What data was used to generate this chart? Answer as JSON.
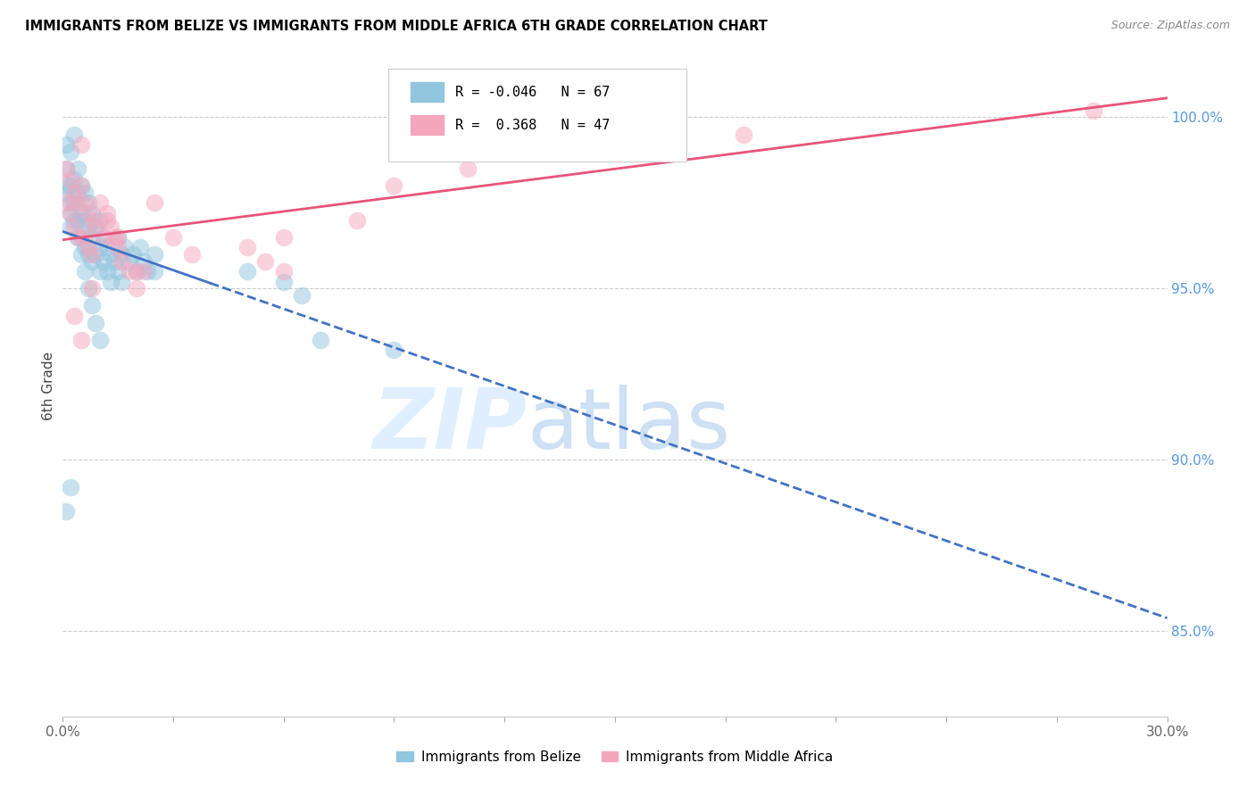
{
  "title": "IMMIGRANTS FROM BELIZE VS IMMIGRANTS FROM MIDDLE AFRICA 6TH GRADE CORRELATION CHART",
  "source": "Source: ZipAtlas.com",
  "ylabel": "6th Grade",
  "y_ticks": [
    85.0,
    90.0,
    95.0,
    100.0
  ],
  "x_min": 0.0,
  "x_max": 0.3,
  "y_min": 82.5,
  "y_max": 101.8,
  "legend_blue_label": "Immigrants from Belize",
  "legend_pink_label": "Immigrants from Middle Africa",
  "R_blue": -0.046,
  "N_blue": 67,
  "R_pink": 0.368,
  "N_pink": 47,
  "blue_color": "#92c5de",
  "pink_color": "#f4a6bd",
  "blue_line_color": "#4472c4",
  "pink_line_color": "#e8547a",
  "blue_points_x": [
    0.001,
    0.001,
    0.001,
    0.002,
    0.002,
    0.002,
    0.002,
    0.003,
    0.003,
    0.003,
    0.004,
    0.004,
    0.004,
    0.005,
    0.005,
    0.005,
    0.006,
    0.006,
    0.006,
    0.007,
    0.007,
    0.007,
    0.008,
    0.008,
    0.008,
    0.009,
    0.009,
    0.01,
    0.01,
    0.01,
    0.011,
    0.011,
    0.012,
    0.012,
    0.013,
    0.013,
    0.014,
    0.015,
    0.015,
    0.016,
    0.016,
    0.017,
    0.018,
    0.019,
    0.02,
    0.021,
    0.022,
    0.023,
    0.025,
    0.025,
    0.001,
    0.002,
    0.003,
    0.004,
    0.005,
    0.006,
    0.007,
    0.008,
    0.009,
    0.01,
    0.001,
    0.002,
    0.05,
    0.06,
    0.065,
    0.07,
    0.09
  ],
  "blue_points_y": [
    99.2,
    98.5,
    97.8,
    99.0,
    98.0,
    97.2,
    96.8,
    99.5,
    98.2,
    97.5,
    98.5,
    97.8,
    97.0,
    98.0,
    97.2,
    96.5,
    97.8,
    97.0,
    96.2,
    97.5,
    96.8,
    96.0,
    97.2,
    96.5,
    95.8,
    96.8,
    96.0,
    97.0,
    96.2,
    95.5,
    96.5,
    95.8,
    96.2,
    95.5,
    96.0,
    95.2,
    95.8,
    96.5,
    95.5,
    96.0,
    95.2,
    96.2,
    95.8,
    96.0,
    95.5,
    96.2,
    95.8,
    95.5,
    96.0,
    95.5,
    98.0,
    97.5,
    97.0,
    96.5,
    96.0,
    95.5,
    95.0,
    94.5,
    94.0,
    93.5,
    88.5,
    89.2,
    95.5,
    95.2,
    94.8,
    93.5,
    93.2
  ],
  "pink_points_x": [
    0.001,
    0.001,
    0.002,
    0.002,
    0.003,
    0.003,
    0.004,
    0.004,
    0.005,
    0.005,
    0.006,
    0.006,
    0.007,
    0.007,
    0.008,
    0.008,
    0.009,
    0.01,
    0.011,
    0.012,
    0.013,
    0.014,
    0.015,
    0.016,
    0.018,
    0.02,
    0.022,
    0.025,
    0.03,
    0.035,
    0.003,
    0.005,
    0.008,
    0.012,
    0.015,
    0.02,
    0.05,
    0.055,
    0.06,
    0.06,
    0.08,
    0.09,
    0.11,
    0.13,
    0.155,
    0.185,
    0.28
  ],
  "pink_points_y": [
    98.5,
    97.5,
    98.2,
    97.2,
    97.8,
    96.8,
    97.5,
    96.5,
    99.2,
    98.0,
    97.5,
    96.5,
    97.2,
    96.2,
    97.0,
    96.0,
    96.8,
    97.5,
    96.5,
    97.2,
    96.8,
    96.5,
    96.2,
    95.8,
    95.5,
    95.0,
    95.5,
    97.5,
    96.5,
    96.0,
    94.2,
    93.5,
    95.0,
    97.0,
    96.5,
    95.5,
    96.2,
    95.8,
    96.5,
    95.5,
    97.0,
    98.0,
    98.5,
    99.5,
    99.2,
    99.5,
    100.2
  ]
}
